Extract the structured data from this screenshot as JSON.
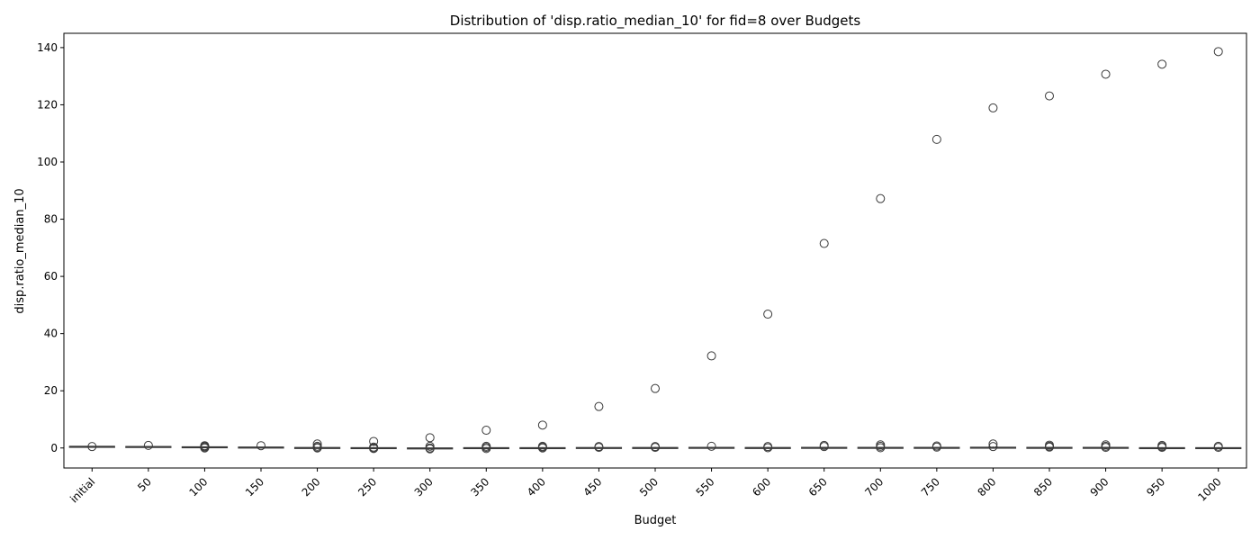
{
  "chart_data": {
    "type": "box",
    "title": "Distribution of 'disp.ratio_median_10' for fid=8 over Budgets",
    "xlabel": "Budget",
    "ylabel": "disp.ratio_median_10",
    "categories": [
      "initial",
      "50",
      "100",
      "150",
      "200",
      "250",
      "300",
      "350",
      "400",
      "450",
      "500",
      "550",
      "600",
      "650",
      "700",
      "750",
      "800",
      "850",
      "900",
      "950",
      "1000"
    ],
    "ylim": [
      -7,
      145
    ],
    "yticks": [
      0,
      20,
      40,
      60,
      80,
      100,
      120,
      140
    ],
    "grid": false,
    "legend": "none",
    "box_color": "#3a3a3a",
    "boxes": [
      {
        "q1": 0.45,
        "median": 0.5,
        "q3": 0.55,
        "whisker_low": 0.4,
        "whisker_high": 0.6,
        "outliers": [
          0.5
        ]
      },
      {
        "q1": 0.4,
        "median": 0.45,
        "q3": 0.5,
        "whisker_low": 0.3,
        "whisker_high": 0.6,
        "outliers": [
          0.9
        ]
      },
      {
        "q1": 0.2,
        "median": 0.3,
        "q3": 0.4,
        "whisker_low": 0.1,
        "whisker_high": 0.5,
        "outliers": [
          0.0,
          0.3,
          0.6,
          0.8
        ]
      },
      {
        "q1": 0.15,
        "median": 0.2,
        "q3": 0.3,
        "whisker_low": 0.05,
        "whisker_high": 0.4,
        "outliers": [
          0.8
        ]
      },
      {
        "q1": 0.0,
        "median": 0.05,
        "q3": 0.15,
        "whisker_low": -0.1,
        "whisker_high": 0.35,
        "outliers": [
          0.0,
          0.2,
          0.6,
          1.4
        ]
      },
      {
        "q1": -0.05,
        "median": 0.0,
        "q3": 0.1,
        "whisker_low": -0.2,
        "whisker_high": 0.3,
        "outliers": [
          -0.2,
          0.0,
          0.3,
          2.3
        ]
      },
      {
        "q1": -0.15,
        "median": -0.1,
        "q3": 0.0,
        "whisker_low": -0.3,
        "whisker_high": 0.1,
        "outliers": [
          -0.3,
          0.0,
          0.6,
          3.6
        ]
      },
      {
        "q1": -0.1,
        "median": 0.0,
        "q3": 0.1,
        "whisker_low": -0.3,
        "whisker_high": 0.3,
        "outliers": [
          -0.2,
          0.2,
          0.6,
          6.2
        ]
      },
      {
        "q1": -0.1,
        "median": 0.0,
        "q3": 0.1,
        "whisker_low": -0.3,
        "whisker_high": 0.3,
        "outliers": [
          0.0,
          0.3,
          0.6,
          8.0
        ]
      },
      {
        "q1": -0.1,
        "median": 0.0,
        "q3": 0.15,
        "whisker_low": -0.3,
        "whisker_high": 0.3,
        "outliers": [
          0.2,
          0.5,
          14.5
        ]
      },
      {
        "q1": -0.1,
        "median": 0.05,
        "q3": 0.15,
        "whisker_low": -0.3,
        "whisker_high": 0.4,
        "outliers": [
          0.2,
          0.5,
          20.8
        ]
      },
      {
        "q1": 0.0,
        "median": 0.1,
        "q3": 0.2,
        "whisker_low": -0.2,
        "whisker_high": 0.4,
        "outliers": [
          0.6,
          32.2
        ]
      },
      {
        "q1": -0.1,
        "median": 0.05,
        "q3": 0.15,
        "whisker_low": -0.3,
        "whisker_high": 0.4,
        "outliers": [
          0.1,
          0.5,
          46.8
        ]
      },
      {
        "q1": 0.0,
        "median": 0.1,
        "q3": 0.2,
        "whisker_low": -0.2,
        "whisker_high": 0.4,
        "outliers": [
          0.5,
          0.9,
          71.5
        ]
      },
      {
        "q1": 0.0,
        "median": 0.1,
        "q3": 0.2,
        "whisker_low": -0.2,
        "whisker_high": 0.4,
        "outliers": [
          0.1,
          0.6,
          1.1,
          87.2
        ]
      },
      {
        "q1": 0.0,
        "median": 0.1,
        "q3": 0.2,
        "whisker_low": -0.2,
        "whisker_high": 0.4,
        "outliers": [
          0.3,
          0.7,
          107.9
        ]
      },
      {
        "q1": 0.0,
        "median": 0.1,
        "q3": 0.25,
        "whisker_low": -0.2,
        "whisker_high": 0.5,
        "outliers": [
          0.5,
          1.4,
          118.9
        ]
      },
      {
        "q1": 0.0,
        "median": 0.1,
        "q3": 0.2,
        "whisker_low": -0.2,
        "whisker_high": 0.4,
        "outliers": [
          0.3,
          0.6,
          1.0,
          123.1
        ]
      },
      {
        "q1": 0.0,
        "median": 0.1,
        "q3": 0.2,
        "whisker_low": -0.2,
        "whisker_high": 0.4,
        "outliers": [
          0.2,
          0.6,
          1.1,
          130.7
        ]
      },
      {
        "q1": -0.1,
        "median": 0.0,
        "q3": 0.1,
        "whisker_low": -0.3,
        "whisker_high": 0.3,
        "outliers": [
          0.2,
          0.5,
          0.9,
          134.2
        ]
      },
      {
        "q1": -0.1,
        "median": 0.0,
        "q3": 0.1,
        "whisker_low": -0.3,
        "whisker_high": 0.3,
        "outliers": [
          0.2,
          0.6,
          138.6
        ]
      }
    ]
  }
}
